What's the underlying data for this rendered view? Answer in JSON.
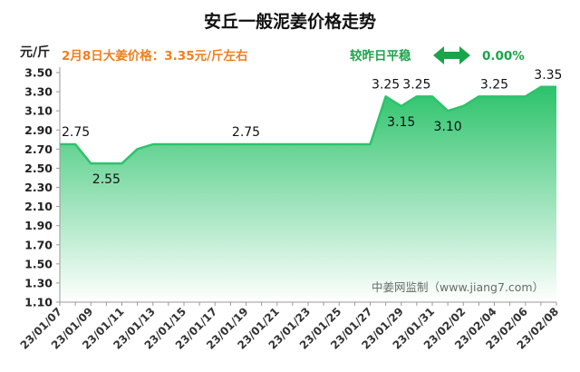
{
  "chart_data": {
    "type": "area",
    "title": "安丘一般泥姜价格走势",
    "ylabel": "元/斤",
    "ylim": [
      1.1,
      3.5
    ],
    "ytick_step": 0.2,
    "y_decimals": 2,
    "grid": false,
    "legend": "none",
    "area_color": "#2cc36b",
    "line_color": "#2cc36b",
    "x": [
      "23/01/07",
      "23/01/08",
      "23/01/09",
      "23/01/10",
      "23/01/11",
      "23/01/12",
      "23/01/13",
      "23/01/14",
      "23/01/15",
      "23/01/16",
      "23/01/17",
      "23/01/18",
      "23/01/19",
      "23/01/20",
      "23/01/21",
      "23/01/22",
      "23/01/23",
      "23/01/24",
      "23/01/25",
      "23/01/26",
      "23/01/27",
      "23/01/28",
      "23/01/29",
      "23/01/30",
      "23/01/31",
      "23/02/01",
      "23/02/02",
      "23/02/03",
      "23/02/04",
      "23/02/05",
      "23/02/06",
      "23/02/07",
      "23/02/08"
    ],
    "xtick_labels": [
      "23/01/07",
      "23/01/09",
      "23/01/11",
      "23/01/13",
      "23/01/15",
      "23/01/17",
      "23/01/19",
      "23/01/21",
      "23/01/23",
      "23/01/25",
      "23/01/27",
      "23/01/29",
      "23/01/31",
      "23/02/02",
      "23/02/04",
      "23/02/06",
      "23/02/08"
    ],
    "values": [
      2.75,
      2.75,
      2.55,
      2.55,
      2.55,
      2.7,
      2.75,
      2.75,
      2.75,
      2.75,
      2.75,
      2.75,
      2.75,
      2.75,
      2.75,
      2.75,
      2.75,
      2.75,
      2.75,
      2.75,
      2.75,
      3.25,
      3.15,
      3.25,
      3.25,
      3.1,
      3.15,
      3.25,
      3.25,
      3.25,
      3.25,
      3.35,
      3.35
    ],
    "data_labels": [
      {
        "index": 0,
        "text": "2.75",
        "pos": "above"
      },
      {
        "index": 3,
        "text": "2.55",
        "pos": "below"
      },
      {
        "index": 12,
        "text": "2.75",
        "pos": "above"
      },
      {
        "index": 21,
        "text": "3.25",
        "pos": "above"
      },
      {
        "index": 22,
        "text": "3.15",
        "pos": "below"
      },
      {
        "index": 23,
        "text": "3.25",
        "pos": "above"
      },
      {
        "index": 25,
        "text": "3.10",
        "pos": "below"
      },
      {
        "index": 28,
        "text": "3.25",
        "pos": "above"
      },
      {
        "index": 31,
        "text": "3.35",
        "pos": "above"
      }
    ]
  },
  "info": {
    "price_text": "2月8日大姜价格：3.35元/斤左右",
    "compare_text": "较昨日平稳",
    "change_text": "0.00%",
    "arrow_icon": "double-arrow-icon"
  },
  "watermark": "中姜网监制（www.jiang7.com）"
}
